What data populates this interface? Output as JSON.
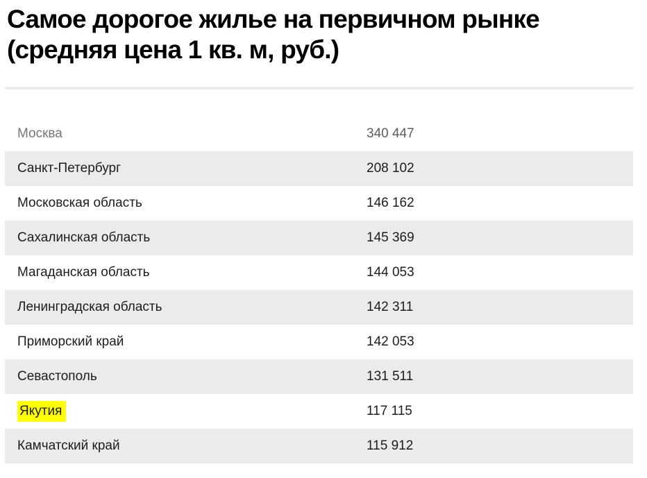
{
  "title": {
    "line1": "Самое дорогое жилье на первичном рынке",
    "line2": "(средняя цена 1 кв. м, руб.)"
  },
  "table": {
    "rows": [
      {
        "region": "Москва",
        "price": "340 447",
        "muted": true
      },
      {
        "region": "Санкт-Петербург",
        "price": "208 102"
      },
      {
        "region": "Московская область",
        "price": "146 162"
      },
      {
        "region": "Сахалинская область",
        "price": "145 369"
      },
      {
        "region": "Магаданская область",
        "price": "144 053"
      },
      {
        "region": "Ленинградская область",
        "price": "142 311"
      },
      {
        "region": "Приморский край",
        "price": "142 053"
      },
      {
        "region": "Севастополь",
        "price": "131 511"
      },
      {
        "region": "Якутия",
        "price": "117 115",
        "highlighted": true
      },
      {
        "region": "Камчатский край",
        "price": "115 912"
      }
    ]
  },
  "chart_data": {
    "type": "table",
    "title": "Самое дорогое жилье на первичном рынке (средняя цена 1 кв. м, руб.)",
    "categories": [
      "Москва",
      "Санкт-Петербург",
      "Московская область",
      "Сахалинская область",
      "Магаданская область",
      "Ленинградская область",
      "Приморский край",
      "Севастополь",
      "Якутия",
      "Камчатский край"
    ],
    "values": [
      340447,
      208102,
      146162,
      145369,
      144053,
      142311,
      142053,
      131511,
      117115,
      115912
    ],
    "highlighted_category": "Якутия",
    "layout": "two-column ranked list, zebra striping on even rows"
  },
  "colors": {
    "row_alt_bg": "#ebebeb",
    "highlight": "#ffff00",
    "muted_text": "#767676",
    "text": "#1c1c1c",
    "divider": "#ececec"
  }
}
